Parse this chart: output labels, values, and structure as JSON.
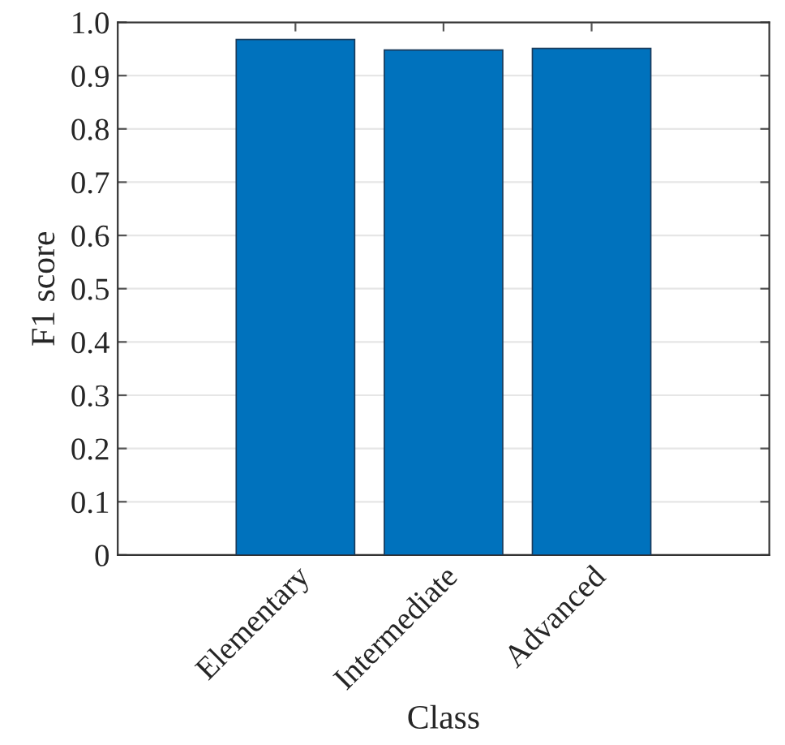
{
  "chart_data": {
    "type": "bar",
    "xlabel": "Class",
    "ylabel": "F1 score",
    "categories": [
      "Elementary",
      "Intermediate",
      "Advanced"
    ],
    "values": [
      0.968,
      0.948,
      0.951
    ],
    "color": "#0072bd",
    "ylim": [
      0,
      1.0
    ],
    "yticks": [
      0,
      {
        "value": 0.1,
        "label": "0.1"
      },
      {
        "value": 0.2,
        "label": "0.2"
      },
      {
        "value": 0.3,
        "label": "0.3"
      },
      {
        "value": 0.4,
        "label": "0.4"
      },
      {
        "value": 0.5,
        "label": "0.5"
      },
      {
        "value": 0.6,
        "label": "0.6"
      },
      {
        "value": 0.7,
        "label": "0.7"
      },
      {
        "value": 0.8,
        "label": "0.8"
      },
      {
        "value": 0.9,
        "label": "0.9"
      },
      {
        "value": 1.0,
        "label": "1.0"
      }
    ],
    "grid": "y"
  }
}
